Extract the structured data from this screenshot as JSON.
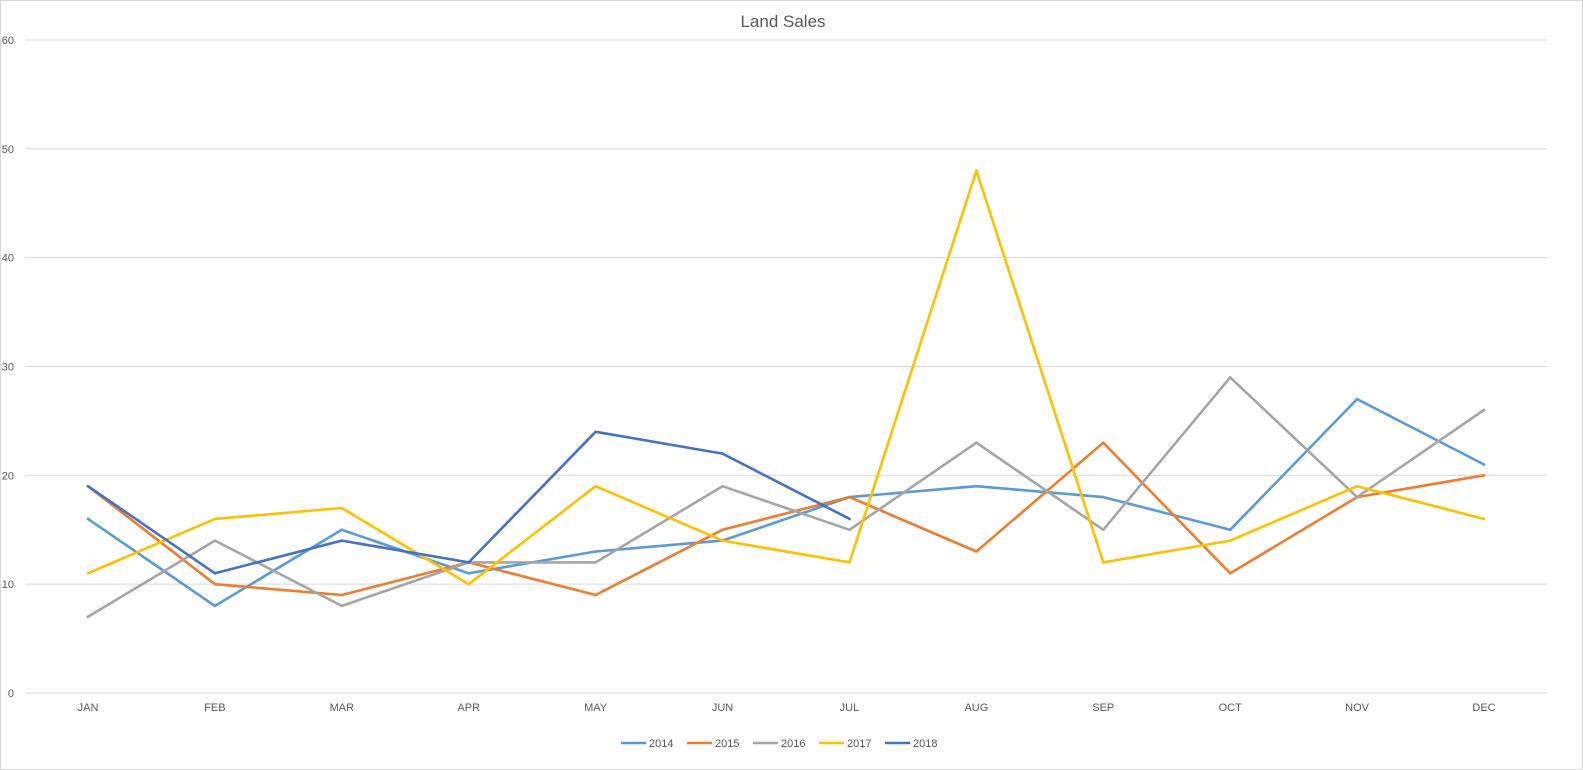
{
  "chart_data": {
    "type": "line",
    "title": "Land Sales",
    "xlabel": "",
    "ylabel": "",
    "categories": [
      "JAN",
      "FEB",
      "MAR",
      "APR",
      "MAY",
      "JUN",
      "JUL",
      "AUG",
      "SEP",
      "OCT",
      "NOV",
      "DEC"
    ],
    "ylim": [
      0,
      60
    ],
    "yticks": [
      0,
      10,
      20,
      30,
      40,
      50,
      60
    ],
    "grid": true,
    "legend_position": "bottom",
    "series": [
      {
        "name": "2014",
        "color": "#5b9bd5",
        "values": [
          16,
          8,
          15,
          11,
          13,
          14,
          18,
          19,
          18,
          15,
          27,
          21
        ]
      },
      {
        "name": "2015",
        "color": "#ed7d31",
        "values": [
          19,
          10,
          9,
          12,
          9,
          15,
          18,
          13,
          23,
          11,
          18,
          20
        ]
      },
      {
        "name": "2016",
        "color": "#a5a5a5",
        "values": [
          7,
          14,
          8,
          12,
          12,
          19,
          15,
          23,
          15,
          29,
          18,
          26
        ]
      },
      {
        "name": "2017",
        "color": "#ffc000",
        "values": [
          11,
          16,
          17,
          10,
          19,
          14,
          12,
          48,
          12,
          14,
          19,
          16
        ]
      },
      {
        "name": "2018",
        "color": "#4472c4",
        "values": [
          19,
          11,
          14,
          12,
          24,
          22,
          16,
          null,
          null,
          null,
          null,
          null
        ]
      }
    ]
  }
}
